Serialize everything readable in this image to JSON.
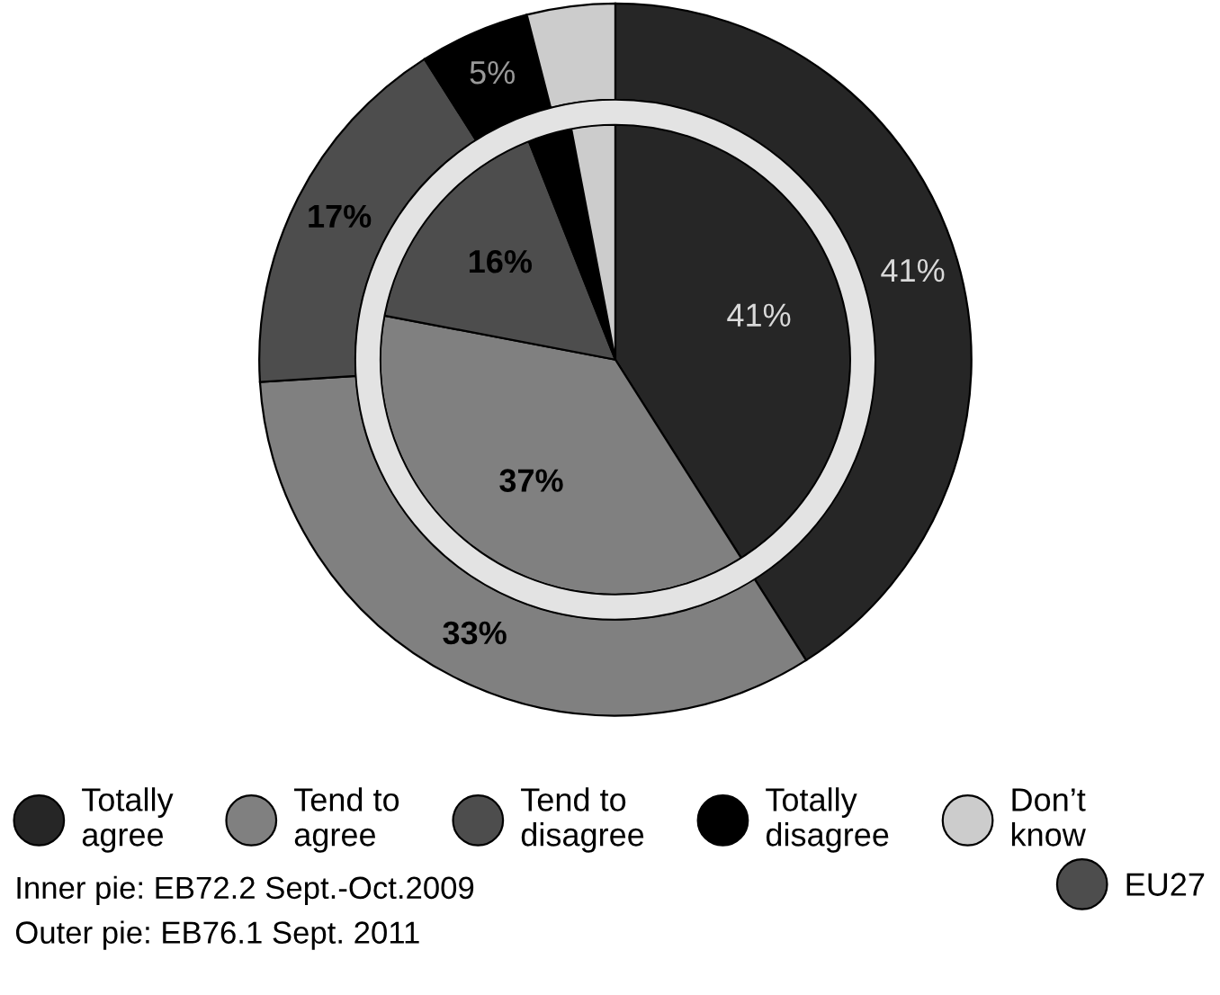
{
  "chart_data": {
    "type": "donut",
    "categories": [
      "Totally agree",
      "Tend to agree",
      "Tend to disagree",
      "Totally disagree",
      "Don’t know"
    ],
    "colors": [
      "#262626",
      "#808080",
      "#4d4d4d",
      "#000000",
      "#cccccc"
    ],
    "series": [
      {
        "values": [
          41,
          37,
          16,
          3,
          3
        ],
        "value_labels": [
          "41%",
          "37%",
          "16%",
          null,
          null
        ]
      },
      {
        "values": [
          41,
          33,
          17,
          5,
          4
        ],
        "value_labels": [
          "41%",
          "33%",
          "17%",
          "5%",
          null
        ]
      }
    ],
    "legend": "bottom",
    "legend_title": "EU27",
    "annotations": [
      "Inner pie: EB72.2 Sept.-Oct.2009",
      "Outer pie: EB76.1 Sept. 2011"
    ]
  }
}
